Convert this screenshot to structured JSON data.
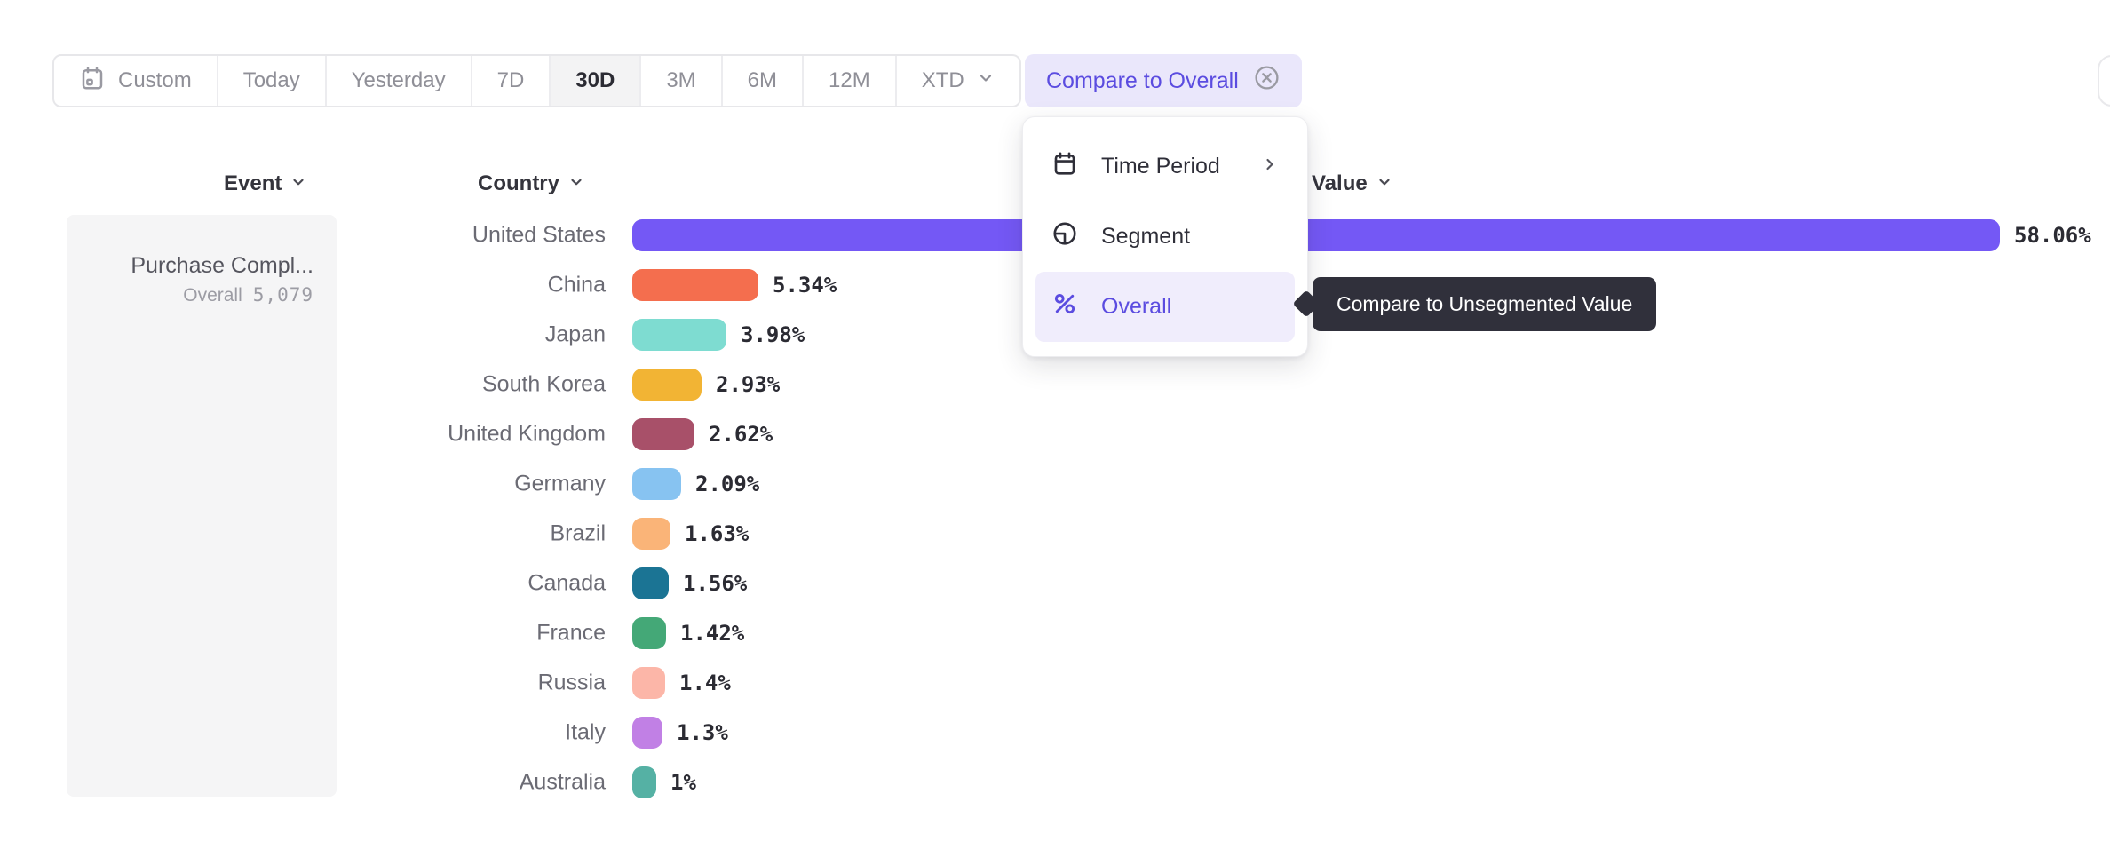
{
  "toolbar": {
    "buttons": [
      {
        "label": "Custom",
        "icon": "calendar-icon",
        "selected": false
      },
      {
        "label": "Today",
        "selected": false
      },
      {
        "label": "Yesterday",
        "selected": false
      },
      {
        "label": "7D",
        "selected": false
      },
      {
        "label": "30D",
        "selected": true
      },
      {
        "label": "3M",
        "selected": false
      },
      {
        "label": "6M",
        "selected": false
      },
      {
        "label": "12M",
        "selected": false
      },
      {
        "label": "XTD",
        "icon": "chevron-down-icon",
        "selected": false
      }
    ],
    "compare_button": {
      "label": "Compare to Overall",
      "icon": "x-circle-icon"
    }
  },
  "menu": {
    "items": [
      {
        "label": "Time Period",
        "icon": "calendar-icon",
        "has_submenu": true,
        "selected": false
      },
      {
        "label": "Segment",
        "icon": "segment-icon",
        "has_submenu": false,
        "selected": false
      },
      {
        "label": "Overall",
        "icon": "percent-icon",
        "has_submenu": false,
        "selected": true
      }
    ]
  },
  "tooltip": {
    "text": "Compare to Unsegmented Value"
  },
  "table": {
    "headers": {
      "event": "Event",
      "country": "Country",
      "value": "Value"
    }
  },
  "event_panel": {
    "title": "Purchase Compl...",
    "overall_label": "Overall",
    "overall_value": "5,079"
  },
  "chart_data": {
    "type": "bar",
    "orientation": "horizontal",
    "title": "",
    "xlabel": "Value",
    "ylabel": "Country",
    "categories": [
      "United States",
      "China",
      "Japan",
      "South Korea",
      "United Kingdom",
      "Germany",
      "Brazil",
      "Canada",
      "France",
      "Russia",
      "Italy",
      "Australia"
    ],
    "values": [
      58.06,
      5.34,
      3.98,
      2.93,
      2.62,
      2.09,
      1.63,
      1.56,
      1.42,
      1.4,
      1.3,
      1
    ],
    "value_labels": [
      "58.06%",
      "5.34%",
      "3.98%",
      "2.93%",
      "2.62%",
      "2.09%",
      "1.63%",
      "1.56%",
      "1.42%",
      "1.4%",
      "1.3%",
      "1%"
    ],
    "colors": [
      "#7458f5",
      "#f46e4e",
      "#7edcd1",
      "#f2b434",
      "#a85069",
      "#87c3f1",
      "#fab478",
      "#1b7494",
      "#44a877",
      "#fcb6a8",
      "#c180e5",
      "#55b1a4"
    ],
    "xlim": [
      0,
      60
    ],
    "grid": false,
    "legend": false
  },
  "colors": {
    "accent": "#5b4ce0",
    "accent_bar": "#7458f5",
    "compare_button_bg": "#eae7fb",
    "menu_highlight_bg": "#f0edfc",
    "selected_tab_bg": "#f3f3f4",
    "panel_bg": "#f5f5f6",
    "tooltip_bg": "#30303b"
  }
}
